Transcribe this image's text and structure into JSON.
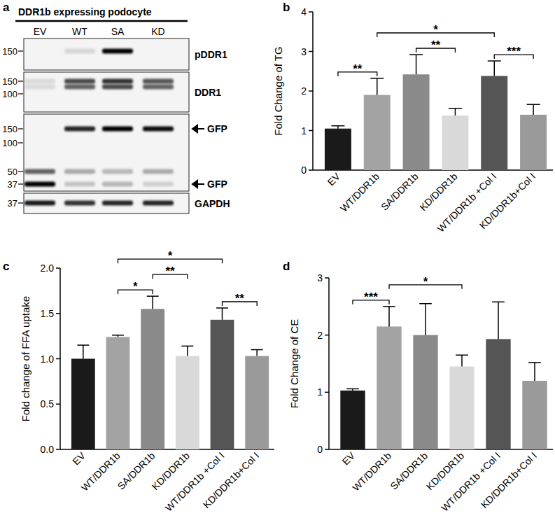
{
  "blot": {
    "panel": "a",
    "title": "DDR1b expressing podocyte",
    "lanes": [
      "EV",
      "WT",
      "SA",
      "KD"
    ],
    "rows": [
      {
        "label": "pDDR1",
        "markers": [
          150
        ],
        "bands": [
          {
            "mw": 150,
            "intensity": [
              0,
              0.12,
              1,
              0
            ]
          }
        ],
        "arrows": []
      },
      {
        "label": "DDR1",
        "markers": [
          150,
          100
        ],
        "bands": [
          {
            "mw": 150,
            "intensity": [
              0.1,
              0.7,
              0.8,
              0.65
            ]
          },
          {
            "mw": 125,
            "intensity": [
              0.1,
              0.6,
              0.7,
              0.6
            ]
          }
        ],
        "arrows": []
      },
      {
        "label": "",
        "markers": [
          150,
          100,
          50,
          37
        ],
        "bands": [
          {
            "mw": 150,
            "intensity": [
              0,
              0.85,
              1,
              0.95
            ]
          },
          {
            "mw": 50,
            "intensity": [
              0.6,
              0.3,
              0.25,
              0.3
            ]
          },
          {
            "mw": 37,
            "intensity": [
              1,
              0.2,
              0.25,
              0.15
            ]
          }
        ],
        "arrows": [
          {
            "mw": 150,
            "label": "GFP"
          },
          {
            "mw": 37,
            "label": "GFP"
          }
        ]
      },
      {
        "label": "GAPDH",
        "markers": [
          37
        ],
        "bands": [
          {
            "mw": 37,
            "intensity": [
              0.9,
              0.8,
              0.85,
              0.85
            ]
          }
        ],
        "arrows": []
      }
    ]
  },
  "chart_data": [
    {
      "type": "bar",
      "panel": "b",
      "y_label": "Fold Change of TG",
      "categories": [
        "EV",
        "WT/DDR1b",
        "SA/DDR1b",
        "KD/DDR1b",
        "WT/DDR1b +Col I",
        "KD/DDR1b+Col I"
      ],
      "values": [
        1.05,
        1.9,
        2.42,
        1.38,
        2.38,
        1.4
      ],
      "errors": [
        0.07,
        0.42,
        0.5,
        0.18,
        0.38,
        0.26
      ],
      "colors": [
        "#1a1a1a",
        "#a3a3a3",
        "#8a8a8a",
        "#d9d9d9",
        "#555555",
        "#9a9a9a"
      ],
      "ylim": [
        0,
        4
      ],
      "yticks": [
        0,
        1,
        2,
        3,
        4
      ],
      "annotations": [
        {
          "from": 0,
          "to": 1,
          "label": "**"
        },
        {
          "from": 2,
          "to": 3,
          "label": "**"
        },
        {
          "from": 4,
          "to": 5,
          "label": "***"
        },
        {
          "from": 1,
          "to": 4,
          "label": "*"
        }
      ]
    },
    {
      "type": "bar",
      "panel": "c",
      "y_label": "Fold change of FFA uptake",
      "categories": [
        "EV",
        "WT/DDR1b",
        "SA/DDR1b",
        "KD/DDR1b",
        "WT/DDR1b +Col I",
        "KD/DDR1b+Col I"
      ],
      "values": [
        1.0,
        1.24,
        1.55,
        1.03,
        1.43,
        1.03
      ],
      "errors": [
        0.15,
        0.02,
        0.14,
        0.11,
        0.13,
        0.07
      ],
      "colors": [
        "#1a1a1a",
        "#a3a3a3",
        "#8a8a8a",
        "#d9d9d9",
        "#555555",
        "#9a9a9a"
      ],
      "ylim": [
        0,
        2
      ],
      "yticks": [
        {
          "value": 0,
          "label": "0.0"
        },
        {
          "value": 0.5,
          "label": "0.5"
        },
        {
          "value": 1,
          "label": "1.0"
        },
        {
          "value": 1.5,
          "label": "1.5"
        },
        {
          "value": 2,
          "label": "2.0"
        }
      ],
      "annotations": [
        {
          "from": 1,
          "to": 2,
          "label": "*"
        },
        {
          "from": 2,
          "to": 3,
          "label": "**"
        },
        {
          "from": 4,
          "to": 5,
          "label": "**"
        },
        {
          "from": 1,
          "to": 4,
          "label": "*"
        }
      ]
    },
    {
      "type": "bar",
      "panel": "d",
      "y_label": "Fold Change of CE",
      "categories": [
        "EV",
        "WT/DDR1b",
        "SA/DDR1b",
        "KD/DDR1b",
        "WT/DDR1b +Col I",
        "KD/DDR1b+Col I"
      ],
      "values": [
        1.03,
        2.15,
        2.0,
        1.45,
        1.93,
        1.2
      ],
      "errors": [
        0.03,
        0.35,
        0.55,
        0.2,
        0.65,
        0.32
      ],
      "colors": [
        "#1a1a1a",
        "#a3a3a3",
        "#8a8a8a",
        "#d9d9d9",
        "#555555",
        "#9a9a9a"
      ],
      "ylim": [
        0,
        3
      ],
      "yticks": [
        0,
        1,
        2,
        3
      ],
      "annotations": [
        {
          "from": 0,
          "to": 1,
          "label": "***"
        },
        {
          "from": 1,
          "to": 3,
          "label": "*"
        }
      ]
    }
  ]
}
